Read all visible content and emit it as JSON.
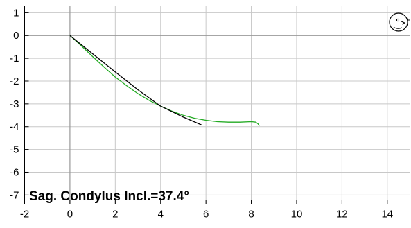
{
  "chart_data": {
    "type": "line",
    "title": "",
    "annotation": "Sag. Condylus Incl.=37.4°",
    "xlabel": "",
    "ylabel": "",
    "xlim": [
      -2,
      15
    ],
    "ylim": [
      -7.4,
      1.3
    ],
    "x_ticks": [
      -2,
      0,
      2,
      4,
      6,
      8,
      10,
      12,
      14
    ],
    "y_ticks": [
      1,
      0,
      -1,
      -2,
      -3,
      -4,
      -5,
      -6,
      -7
    ],
    "x_tick_labels": [
      "-2",
      "0",
      "2",
      "4",
      "6",
      "8",
      "10",
      "12",
      "14"
    ],
    "y_tick_labels": [
      "1",
      "0",
      "-1",
      "-2",
      "-3",
      "-4",
      "-5",
      "-6",
      "-7"
    ],
    "grid": true,
    "series": [
      {
        "color": "#22aa22",
        "x": [
          0,
          0.5,
          1,
          1.5,
          2,
          2.5,
          3,
          3.5,
          4,
          4.5,
          5,
          5.5,
          6,
          6.5,
          7,
          7.5,
          8,
          8.2,
          8.3,
          8.35
        ],
        "y": [
          0,
          -0.45,
          -0.92,
          -1.38,
          -1.82,
          -2.2,
          -2.55,
          -2.85,
          -3.1,
          -3.32,
          -3.5,
          -3.63,
          -3.72,
          -3.78,
          -3.8,
          -3.8,
          -3.78,
          -3.8,
          -3.88,
          -3.97
        ]
      },
      {
        "color": "#000000",
        "x": [
          0,
          1,
          2,
          3,
          4,
          5,
          5.8
        ],
        "y": [
          0,
          -0.8,
          -1.6,
          -2.38,
          -3.1,
          -3.58,
          -3.92
        ]
      }
    ],
    "icon": "condyle-head-icon"
  }
}
